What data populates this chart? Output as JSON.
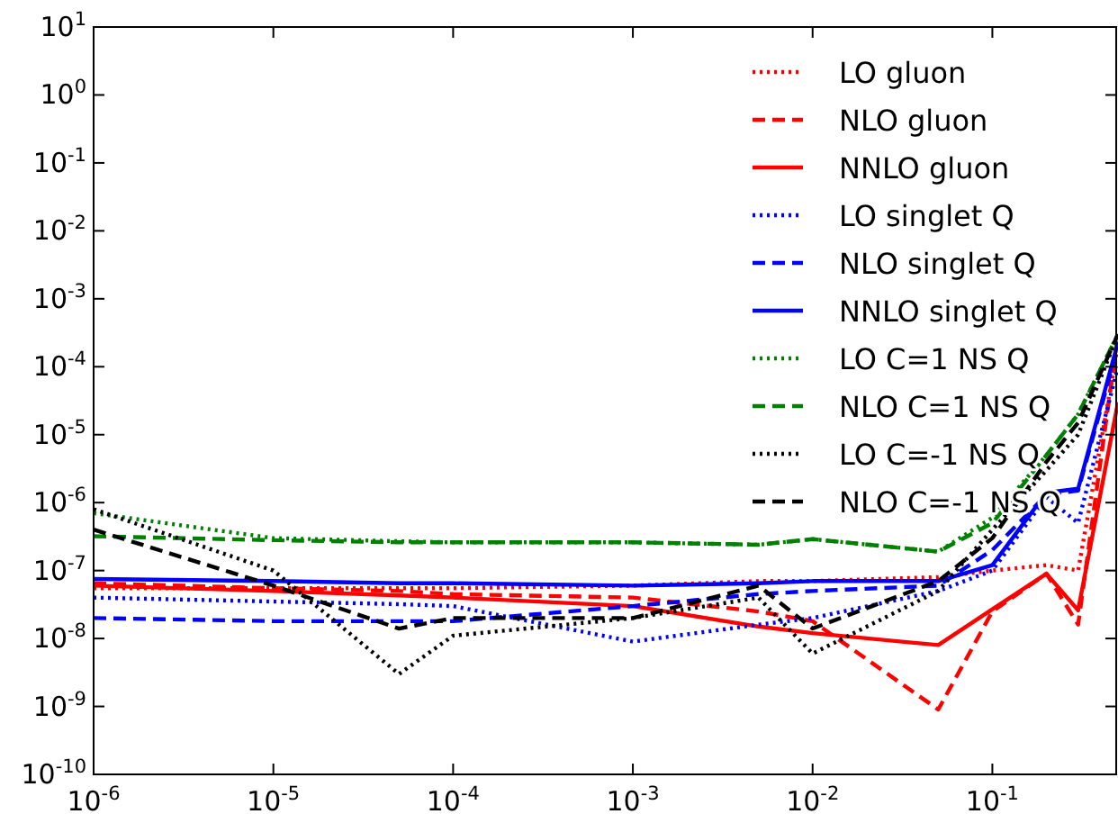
{
  "chart_data": {
    "type": "line",
    "log": "xy",
    "legend": "top right",
    "grid": false,
    "x": [
      1e-06,
      1e-05,
      5e-05,
      0.0001,
      0.001,
      0.005,
      0.01,
      0.05,
      0.1,
      0.2,
      0.3,
      0.5
    ],
    "xlim": [
      1e-06,
      0.5
    ],
    "ylim": [
      1e-10,
      10
    ],
    "xticks": [
      {
        "value": 1e-06,
        "label": "10$^{-6}$"
      },
      {
        "value": 1e-05,
        "label": "10$^{-5}$"
      },
      {
        "value": 0.0001,
        "label": "10$^{-4}$"
      },
      {
        "value": 0.001,
        "label": "10$^{-3}$"
      },
      {
        "value": 0.01,
        "label": "10$^{-2}$"
      },
      {
        "value": 0.1,
        "label": "10$^{-1}$"
      }
    ],
    "yticks": [
      {
        "value": 1e-10,
        "label": "10$^{-10}$"
      },
      {
        "value": 1e-09,
        "label": "10$^{-9}$"
      },
      {
        "value": 1e-08,
        "label": "10$^{-8}$"
      },
      {
        "value": 1e-07,
        "label": "10$^{-7}$"
      },
      {
        "value": 1e-06,
        "label": "10$^{-6}$"
      },
      {
        "value": 1e-05,
        "label": "10$^{-5}$"
      },
      {
        "value": 0.0001,
        "label": "10$^{-4}$"
      },
      {
        "value": 0.001,
        "label": "10$^{-3}$"
      },
      {
        "value": 0.01,
        "label": "10$^{-2}$"
      },
      {
        "value": 0.1,
        "label": "10$^{-1}$"
      },
      {
        "value": 1,
        "label": "10$^{0}$"
      },
      {
        "value": 10,
        "label": "10$^{1}$"
      }
    ],
    "series": [
      {
        "name": "LO gluon",
        "color": "#ff0000",
        "line_style": "dotted",
        "values": [
          5.5e-08,
          5.5e-08,
          5.5e-08,
          5.5e-08,
          6e-08,
          7e-08,
          7e-08,
          8e-08,
          1e-07,
          1.2e-07,
          1e-07,
          0.0002
        ]
      },
      {
        "name": "NLO gluon",
        "color": "#ff0000",
        "line_style": "dashed",
        "values": [
          6.5e-08,
          5.5e-08,
          5e-08,
          4.5e-08,
          4e-08,
          2.5e-08,
          1.8e-08,
          9e-10,
          2.5e-08,
          9e-08,
          1.6e-08,
          0.0003
        ]
      },
      {
        "name": "NNLO gluon",
        "color": "#ff0000",
        "line_style": "solid",
        "values": [
          6e-08,
          5e-08,
          4.3e-08,
          4e-08,
          3e-08,
          1.5e-08,
          1.2e-08,
          8e-09,
          2.7e-08,
          9e-08,
          2.6e-08,
          3e-05
        ]
      },
      {
        "name": "LO singlet Q",
        "color": "#0000ff",
        "line_style": "dotted",
        "values": [
          4e-08,
          3.5e-08,
          3.2e-08,
          3e-08,
          9e-09,
          1.6e-08,
          2e-08,
          5e-08,
          1e-07,
          1.2e-06,
          5e-07,
          0.0001
        ]
      },
      {
        "name": "NLO singlet Q",
        "color": "#0000ff",
        "line_style": "dashed",
        "values": [
          2e-08,
          1.8e-08,
          1.8e-08,
          1.8e-08,
          3e-08,
          4.5e-08,
          5e-08,
          6e-08,
          2e-07,
          1.3e-06,
          1.5e-06,
          0.0002
        ]
      },
      {
        "name": "NNLO singlet Q",
        "color": "#0000ff",
        "line_style": "solid",
        "values": [
          7.5e-08,
          7e-08,
          6.5e-08,
          6.5e-08,
          6e-08,
          6.5e-08,
          7e-08,
          7e-08,
          1.2e-07,
          1.4e-06,
          1.6e-06,
          0.00023
        ]
      },
      {
        "name": "LO C=1 NS Q",
        "color": "#008000",
        "line_style": "dotted",
        "values": [
          7e-07,
          3e-07,
          2.7e-07,
          2.6e-07,
          2.6e-07,
          2.4e-07,
          2.9e-07,
          1.9e-07,
          6e-07,
          5e-06,
          2e-05,
          0.0003
        ]
      },
      {
        "name": "NLO C=1 NS Q",
        "color": "#008000",
        "line_style": "dashed",
        "values": [
          3.2e-07,
          2.8e-07,
          2.6e-07,
          2.6e-07,
          2.6e-07,
          2.4e-07,
          2.9e-07,
          1.9e-07,
          5e-07,
          5e-06,
          2e-05,
          0.0003
        ]
      },
      {
        "name": "LO C=-1 NS Q",
        "color": "#000000",
        "line_style": "dotted",
        "values": [
          8e-07,
          1e-07,
          3e-09,
          1.1e-08,
          2e-08,
          4e-08,
          6e-09,
          5e-08,
          4e-07,
          3e-06,
          1e-05,
          0.0003
        ]
      },
      {
        "name": "NLO C=-1 NS Q",
        "color": "#000000",
        "line_style": "dashed",
        "values": [
          4e-07,
          6e-08,
          1.4e-08,
          2e-08,
          2e-08,
          6e-08,
          1.4e-08,
          7e-08,
          3e-07,
          4e-06,
          1.5e-05,
          0.0003
        ]
      }
    ]
  }
}
